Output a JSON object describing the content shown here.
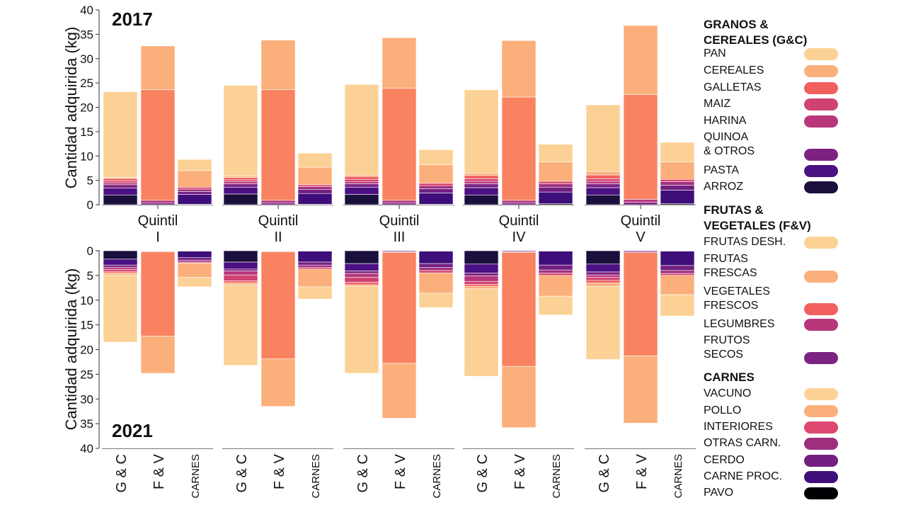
{
  "chart_data": {
    "type": "bar",
    "stacked": true,
    "ylabel": "Cantidad adquirida (kg)",
    "ylim": [
      0,
      40
    ],
    "yticks": [
      0,
      5,
      10,
      15,
      20,
      25,
      30,
      35,
      40
    ],
    "groups": [
      {
        "label": "Quintil",
        "numeral": "I"
      },
      {
        "label": "Quintil",
        "numeral": "II"
      },
      {
        "label": "Quintil",
        "numeral": "III"
      },
      {
        "label": "Quintil",
        "numeral": "IV"
      },
      {
        "label": "Quintil",
        "numeral": "V"
      }
    ],
    "categories": [
      "G & C",
      "F & V",
      "CARNES"
    ],
    "panels": [
      {
        "year": "2017",
        "direction": "up",
        "bars": [
          [
            {
              "G&C": {
                "ARROZ": 2.0,
                "PASTA": 1.4,
                "QUINOA & OTROS": 0.7,
                "HARINA": 0.4,
                "MAIZ": 0.4,
                "GALLETAS": 0.5,
                "CEREALES": 0.2,
                "PAN": 17.6
              }
            },
            {
              "F&V": {
                "FRUTOS SECOS": 0.4,
                "LEGUMBRES": 0.5,
                "VEGETALES FRESCOS": 22.7,
                "FRUTAS FRESCAS": 9.0
              }
            },
            {
              "CARNES": {
                "PAVO": 0.1,
                "CARNE PROC.": 2.0,
                "CERDO": 0.6,
                "OTRAS CARN.": 0.5,
                "INTERIORES": 0.4,
                "POLLO": 3.4,
                "VACUNO": 2.3
              }
            }
          ],
          [
            {
              "G&C": {
                "ARROZ": 2.2,
                "PASTA": 1.4,
                "QUINOA & OTROS": 0.7,
                "HARINA": 0.4,
                "MAIZ": 0.4,
                "GALLETAS": 0.5,
                "CEREALES": 0.3,
                "PAN": 18.6
              }
            },
            {
              "F&V": {
                "FRUTOS SECOS": 0.4,
                "LEGUMBRES": 0.5,
                "VEGETALES FRESCOS": 22.7,
                "FRUTAS FRESCAS": 10.2
              }
            },
            {
              "CARNES": {
                "PAVO": 0.1,
                "CARNE PROC.": 2.2,
                "CERDO": 0.8,
                "OTRAS CARN.": 0.6,
                "INTERIORES": 0.4,
                "POLLO": 3.6,
                "VACUNO": 2.9
              }
            }
          ],
          [
            {
              "G&C": {
                "ARROZ": 2.1,
                "PASTA": 1.5,
                "QUINOA & OTROS": 0.7,
                "HARINA": 0.4,
                "MAIZ": 0.5,
                "GALLETAS": 0.6,
                "CEREALES": 0.3,
                "PAN": 18.6
              }
            },
            {
              "F&V": {
                "FRUTOS SECOS": 0.4,
                "LEGUMBRES": 0.5,
                "VEGETALES FRESCOS": 23.0,
                "FRUTAS FRESCAS": 10.4
              }
            },
            {
              "CARNES": {
                "PAVO": 0.1,
                "CARNE PROC.": 2.3,
                "CERDO": 0.9,
                "OTRAS CARN.": 0.6,
                "INTERIORES": 0.5,
                "POLLO": 3.8,
                "VACUNO": 3.1
              }
            }
          ],
          [
            {
              "G&C": {
                "ARROZ": 2.0,
                "PASTA": 1.5,
                "QUINOA & OTROS": 0.8,
                "HARINA": 0.5,
                "MAIZ": 0.5,
                "GALLETAS": 0.7,
                "CEREALES": 0.5,
                "PAN": 17.1
              }
            },
            {
              "F&V": {
                "FRUTOS SECOS": 0.4,
                "LEGUMBRES": 0.5,
                "VEGETALES FRESCOS": 21.2,
                "FRUTAS FRESCAS": 11.6
              }
            },
            {
              "CARNES": {
                "PAVO": 0.2,
                "CARNE PROC.": 2.4,
                "CERDO": 1.0,
                "OTRAS CARN.": 0.7,
                "INTERIORES": 0.5,
                "POLLO": 4.0,
                "VACUNO": 3.6
              }
            }
          ],
          [
            {
              "G&C": {
                "ARROZ": 2.0,
                "PASTA": 1.5,
                "QUINOA & OTROS": 0.8,
                "HARINA": 0.5,
                "MAIZ": 0.5,
                "GALLETAS": 0.8,
                "CEREALES": 0.7,
                "PAN": 13.7
              }
            },
            {
              "F&V": {
                "FRUTOS SECOS": 0.5,
                "LEGUMBRES": 0.6,
                "VEGETALES FRESCOS": 21.5,
                "FRUTAS FRESCAS": 14.2
              }
            },
            {
              "CARNES": {
                "PAVO": 0.2,
                "CARNE PROC.": 2.8,
                "CERDO": 1.0,
                "OTRAS CARN.": 0.7,
                "INTERIORES": 0.5,
                "POLLO": 3.6,
                "VACUNO": 4.0
              }
            }
          ]
        ]
      },
      {
        "year": "2021",
        "direction": "down",
        "bars": [
          [
            {
              "G&C": {
                "ARROZ": 1.7,
                "PASTA": 1.2,
                "QUINOA & OTROS": 0.5,
                "HARINA": 0.4,
                "MAIZ": 0.4,
                "GALLETAS": 0.3,
                "CEREALES": 0.4,
                "PAN": 13.6
              }
            },
            {
              "F&V": {
                "FRUTOS SECOS": 0.1,
                "LEGUMBRES": 0.1,
                "VEGETALES FRESCOS": 17.1,
                "FRUTAS FRESCAS": 7.5
              }
            },
            {
              "CARNES": {
                "PAVO": 0.1,
                "CARNE PROC.": 1.3,
                "CERDO": 0.5,
                "OTRAS CARN.": 0.4,
                "INTERIORES": 0.2,
                "POLLO": 2.9,
                "VACUNO": 1.9
              }
            }
          ],
          [
            {
              "G&C": {
                "ARROZ": 2.3,
                "PASTA": 1.4,
                "QUINOA & OTROS": 0.4,
                "HARINA": 0.8,
                "MAIZ": 1.2,
                "GALLETAS": 0.4,
                "CEREALES": 0.4,
                "PAN": 16.3
              }
            },
            {
              "F&V": {
                "FRUTOS SECOS": 0.1,
                "LEGUMBRES": 0.1,
                "VEGETALES FRESCOS": 21.7,
                "FRUTAS FRESCAS": 9.6
              }
            },
            {
              "CARNES": {
                "PAVO": 0.1,
                "CARNE PROC.": 2.2,
                "CERDO": 0.6,
                "OTRAS CARN.": 0.5,
                "INTERIORES": 0.3,
                "POLLO": 3.6,
                "VACUNO": 2.5
              }
            }
          ],
          [
            {
              "G&C": {
                "ARROZ": 2.6,
                "PASTA": 1.5,
                "QUINOA & OTROS": 0.5,
                "HARINA": 0.8,
                "MAIZ": 1.0,
                "GALLETAS": 0.5,
                "CEREALES": 0.3,
                "PAN": 17.6
              }
            },
            {
              "F&V": {
                "FRUTOS SECOS": 0.2,
                "LEGUMBRES": 0.1,
                "VEGETALES FRESCOS": 22.5,
                "FRUTAS FRESCAS": 11.1
              }
            },
            {
              "CARNES": {
                "PAVO": 0.1,
                "CARNE PROC.": 2.5,
                "CERDO": 0.8,
                "OTRAS CARN.": 0.6,
                "INTERIORES": 0.5,
                "POLLO": 4.1,
                "VACUNO": 2.9
              }
            }
          ],
          [
            {
              "G&C": {
                "ARROZ": 2.7,
                "PASTA": 1.8,
                "QUINOA & OTROS": 0.6,
                "HARINA": 1.1,
                "MAIZ": 0.6,
                "GALLETAS": 0.4,
                "CEREALES": 0.5,
                "PAN": 17.7
              }
            },
            {
              "F&V": {
                "FRUTOS SECOS": 0.2,
                "LEGUMBRES": 0.1,
                "VEGETALES FRESCOS": 23.1,
                "FRUTAS FRESCAS": 12.4
              }
            },
            {
              "CARNES": {
                "PAVO": 0.1,
                "CARNE PROC.": 2.8,
                "CERDO": 1.0,
                "OTRAS CARN.": 0.6,
                "INTERIORES": 0.5,
                "POLLO": 4.2,
                "VACUNO": 3.8
              }
            }
          ],
          [
            {
              "G&C": {
                "ARROZ": 2.7,
                "PASTA": 1.6,
                "QUINOA & OTROS": 0.6,
                "HARINA": 0.5,
                "MAIZ": 0.6,
                "GALLETAS": 0.5,
                "CEREALES": 0.7,
                "PAN": 14.8
              }
            },
            {
              "F&V": {
                "FRUTOS SECOS": 0.2,
                "LEGUMBRES": 0.2,
                "VEGETALES FRESCOS": 20.9,
                "FRUTAS FRESCAS": 13.6
              }
            },
            {
              "CARNES": {
                "PAVO": 0.1,
                "CARNE PROC.": 2.9,
                "CERDO": 1.0,
                "OTRAS CARN.": 0.6,
                "INTERIORES": 0.4,
                "POLLO": 3.9,
                "VACUNO": 4.3
              }
            }
          ]
        ]
      }
    ],
    "legend": {
      "placement": "right",
      "sections": [
        {
          "key": "G&C",
          "title": "GRANOS &\nCEREALES (G&C)",
          "items": [
            {
              "name": "PAN",
              "color": "#fcd195"
            },
            {
              "name": "CEREALES",
              "color": "#fbaf7b"
            },
            {
              "name": "GALLETAS",
              "color": "#f1605f"
            },
            {
              "name": "MAIZ",
              "color": "#cf4271"
            },
            {
              "name": "HARINA",
              "color": "#b7377a"
            },
            {
              "name": "QUINOA & OTROS",
              "display": "QUINOA\n& OTROS",
              "color": "#7c2382"
            },
            {
              "name": "PASTA",
              "color": "#4b1083"
            },
            {
              "name": "ARROZ",
              "color": "#1a0f3d"
            }
          ]
        },
        {
          "key": "F&V",
          "title": "FRUTAS &\nVEGETALES (F&V)",
          "items": [
            {
              "name": "FRUTAS DESH.",
              "color": "#fcd195"
            },
            {
              "name": "FRUTAS FRESCAS",
              "display": "FRUTAS\nFRESCAS",
              "color": "#fbaf7b"
            },
            {
              "name": "VEGETALES FRESCOS",
              "display": "VEGETALES\nFRESCOS",
              "color": "#f1605f"
            },
            {
              "name": "LEGUMBRES",
              "color": "#b7377a"
            },
            {
              "name": "FRUTOS SECOS",
              "display": "FRUTOS\nSECOS",
              "color": "#7c2382"
            }
          ]
        },
        {
          "key": "CARNES",
          "title": "CARNES",
          "items": [
            {
              "name": "VACUNO",
              "color": "#fcd195"
            },
            {
              "name": "POLLO",
              "color": "#fbaf7b"
            },
            {
              "name": "INTERIORES",
              "color": "#dc4870"
            },
            {
              "name": "OTRAS CARN.",
              "color": "#9e2f7f"
            },
            {
              "name": "CERDO",
              "color": "#721f81"
            },
            {
              "name": "CARNE PROC.",
              "color": "#3e0e7a"
            },
            {
              "name": "PAVO",
              "color": "#000004"
            }
          ]
        }
      ]
    }
  },
  "bar_fill": {
    "F&V": {
      "VEGETALES FRESCOS": "#f98361"
    }
  }
}
